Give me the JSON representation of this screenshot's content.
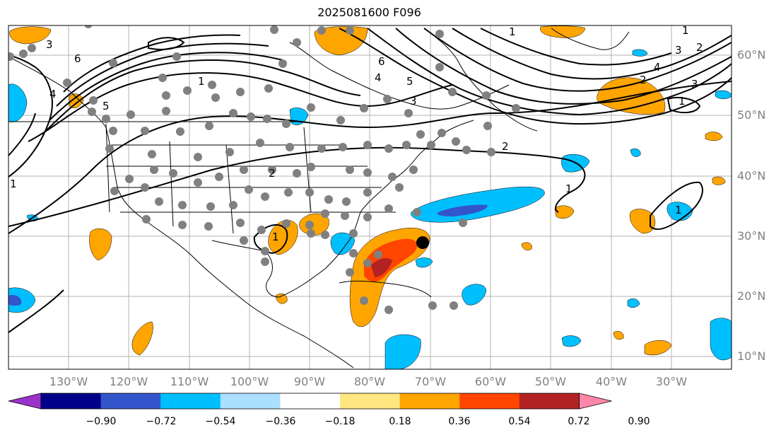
{
  "title": "2025081600 F096",
  "map": {
    "lon_range": [
      -140,
      -20
    ],
    "lat_range": [
      8,
      65
    ],
    "lat_labels": [
      "10°N",
      "20°N",
      "30°N",
      "40°N",
      "50°N",
      "60°N"
    ],
    "lon_labels": [
      "130°W",
      "120°W",
      "110°W",
      "100°W",
      "90°W",
      "80°W",
      "70°W",
      "60°W",
      "50°W",
      "40°W",
      "30°W"
    ],
    "contour_labels": [
      "1",
      "2",
      "3",
      "4",
      "5",
      "6",
      "1",
      "2",
      "3",
      "4",
      "5",
      "6",
      "1",
      "2",
      "3",
      "4",
      "1",
      "2",
      "3",
      "1",
      "1",
      "1",
      "1"
    ],
    "storm_marker": "black-dot-icon",
    "station_marker": "gray-dot-icon"
  },
  "colorbar": {
    "ticks": [
      "−0.90",
      "−0.72",
      "−0.54",
      "−0.36",
      "−0.18",
      "0.18",
      "0.36",
      "0.54",
      "0.72",
      "0.90"
    ],
    "colors": [
      "#9933cc",
      "#00008b",
      "#3355cc",
      "#00bfff",
      "#aadfff",
      "#ffffff",
      "#ffe680",
      "#ffa500",
      "#ff4500",
      "#b22222",
      "#ff88aa"
    ]
  }
}
